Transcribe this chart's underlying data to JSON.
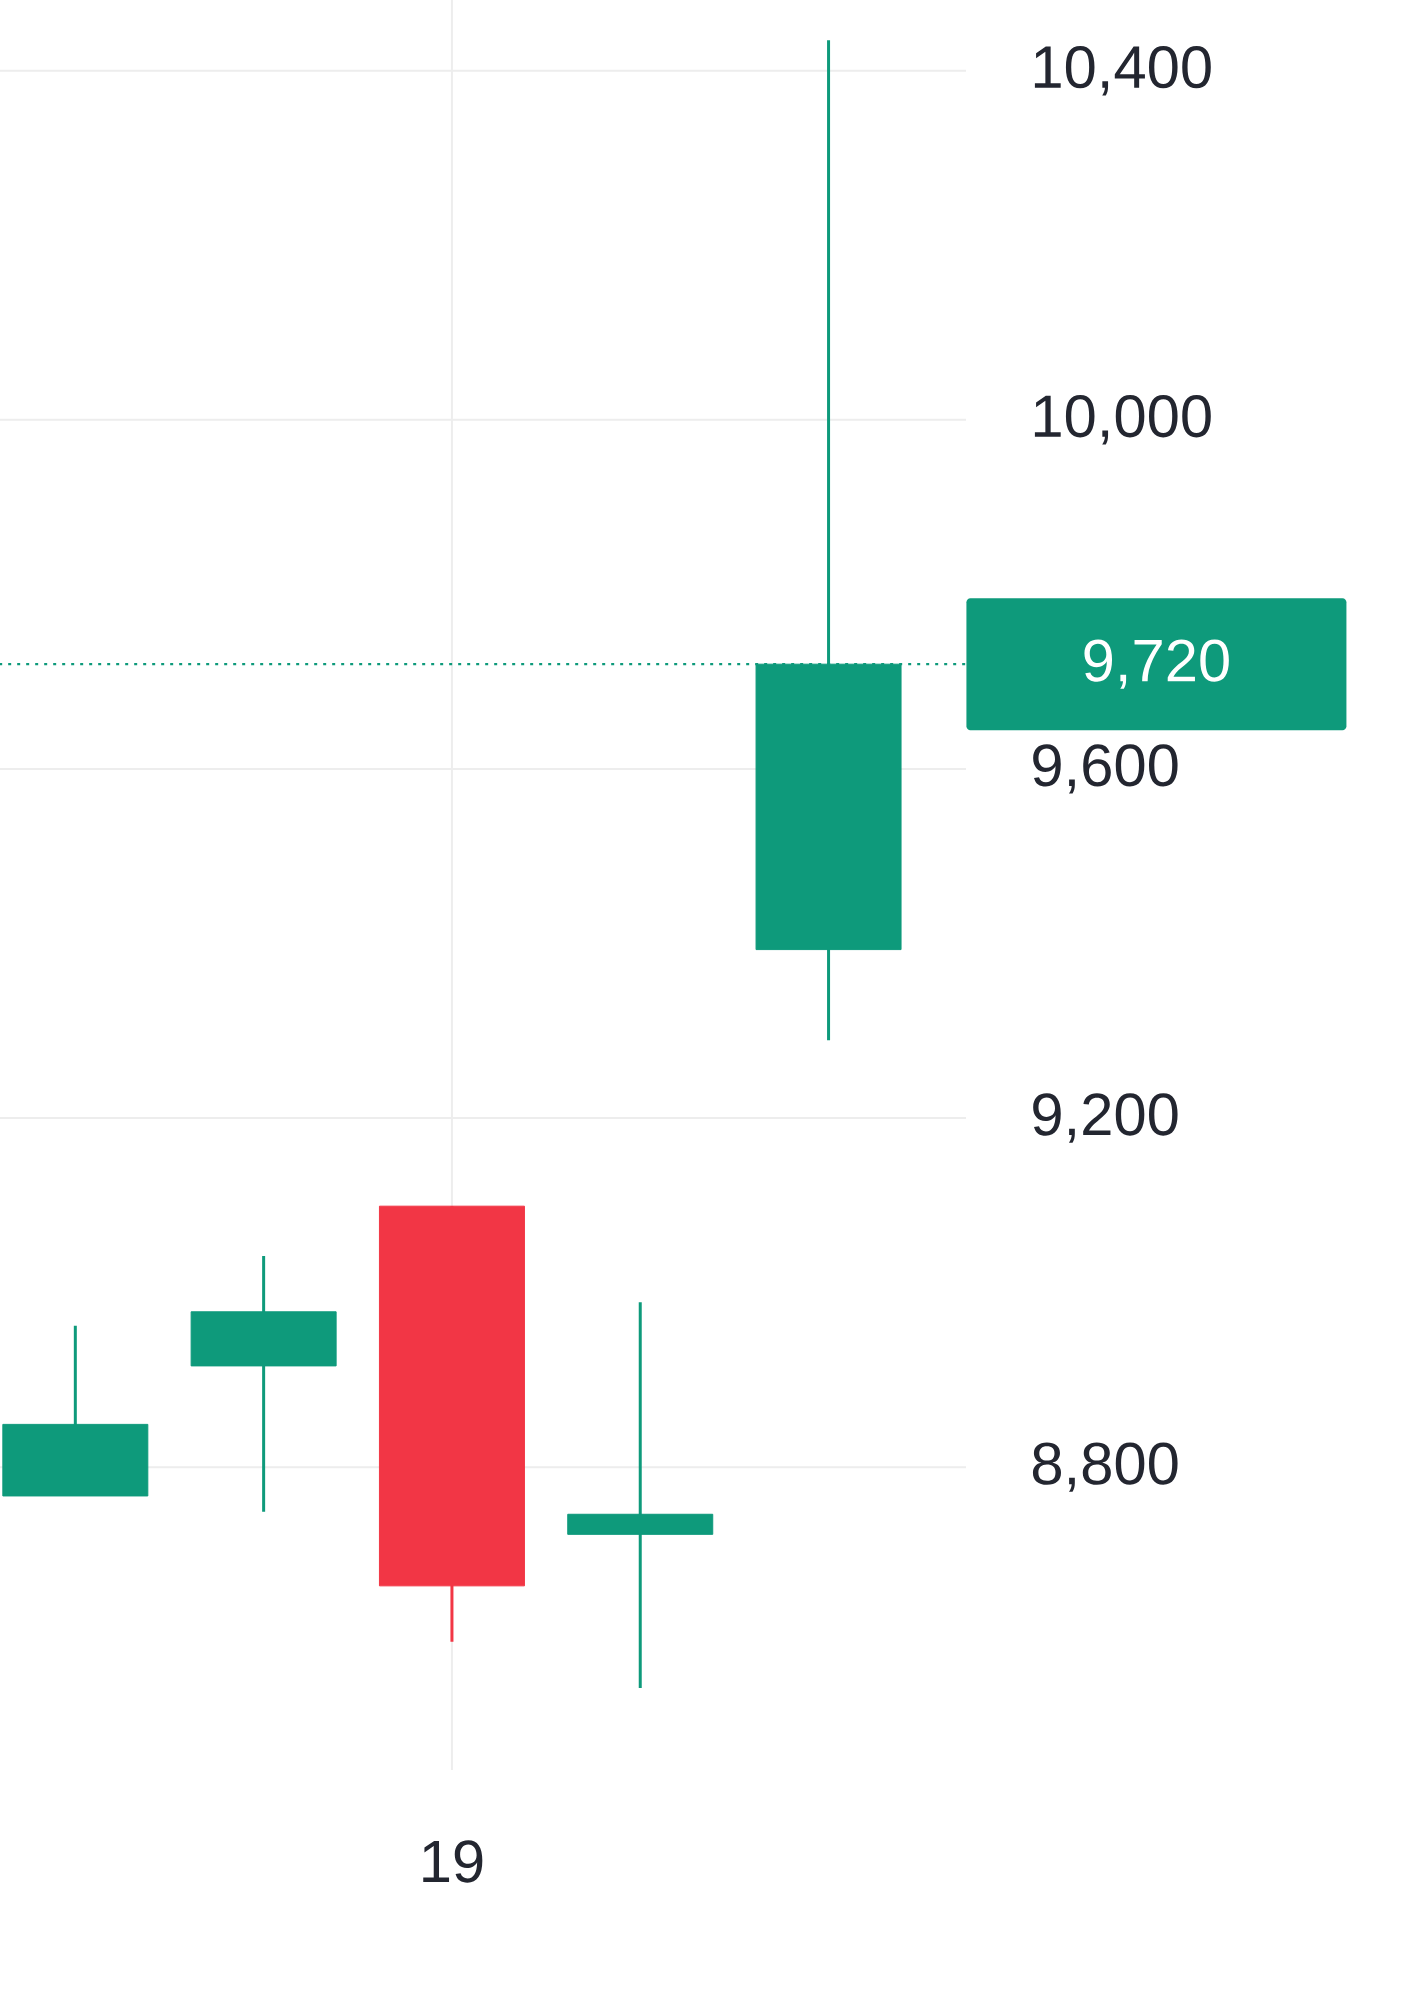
{
  "chart_data": {
    "type": "candlestick",
    "categories": [
      null,
      null,
      "19",
      null,
      null
    ],
    "ohlc": [
      [
        8767,
        8962,
        8767,
        8849
      ],
      [
        8916,
        9042,
        8749,
        8978
      ],
      [
        9099,
        9099,
        8600,
        8664
      ],
      [
        8723,
        8989,
        8547,
        8746
      ],
      [
        9393,
        10435,
        9289,
        9720
      ]
    ],
    "colors": [
      "#0e9a7b",
      "#0e9a7b",
      "#f23645",
      "#0e9a7b",
      "#0e9a7b"
    ],
    "ylim": [
      8453,
      10481
    ],
    "yticks": [
      {
        "value": 8800,
        "label": "8,800"
      },
      {
        "value": 9200,
        "label": "9,200"
      },
      {
        "value": 9600,
        "label": "9,600"
      },
      {
        "value": 10000,
        "label": "10,000"
      },
      {
        "value": 10400,
        "label": "10,400"
      }
    ],
    "grid": true,
    "ref_lines": [
      {
        "axis": "y",
        "value": 9720,
        "label": "9,720",
        "color": "#0e9a7b",
        "line_style": "dotted"
      }
    ]
  }
}
